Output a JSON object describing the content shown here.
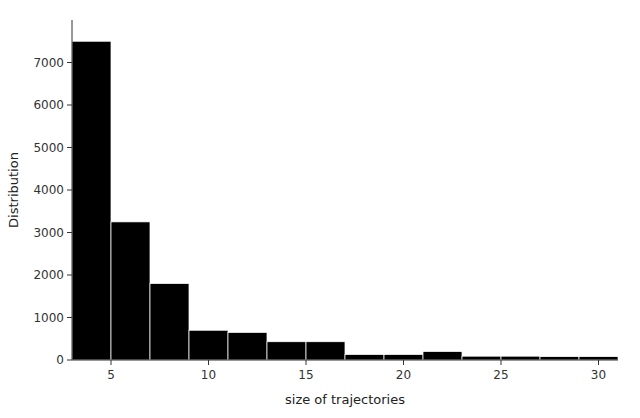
{
  "chart_data": {
    "type": "histogram",
    "bins": [
      3,
      5,
      7,
      9,
      11,
      13,
      15,
      17,
      19,
      21,
      23,
      25,
      27,
      29,
      31
    ],
    "values": [
      7500,
      3250,
      1800,
      700,
      650,
      430,
      430,
      130,
      130,
      200,
      90,
      90,
      80,
      80
    ],
    "color": "#000000",
    "x_label": "size of trajectories",
    "y_label": "Distribution",
    "xlim": [
      3,
      31
    ],
    "ylim": [
      0,
      8000
    ],
    "xticks": [
      5,
      10,
      15,
      20,
      25,
      30
    ],
    "yticks": [
      0,
      1000,
      2000,
      3000,
      4000,
      5000,
      6000,
      7000
    ],
    "grid": false
  }
}
